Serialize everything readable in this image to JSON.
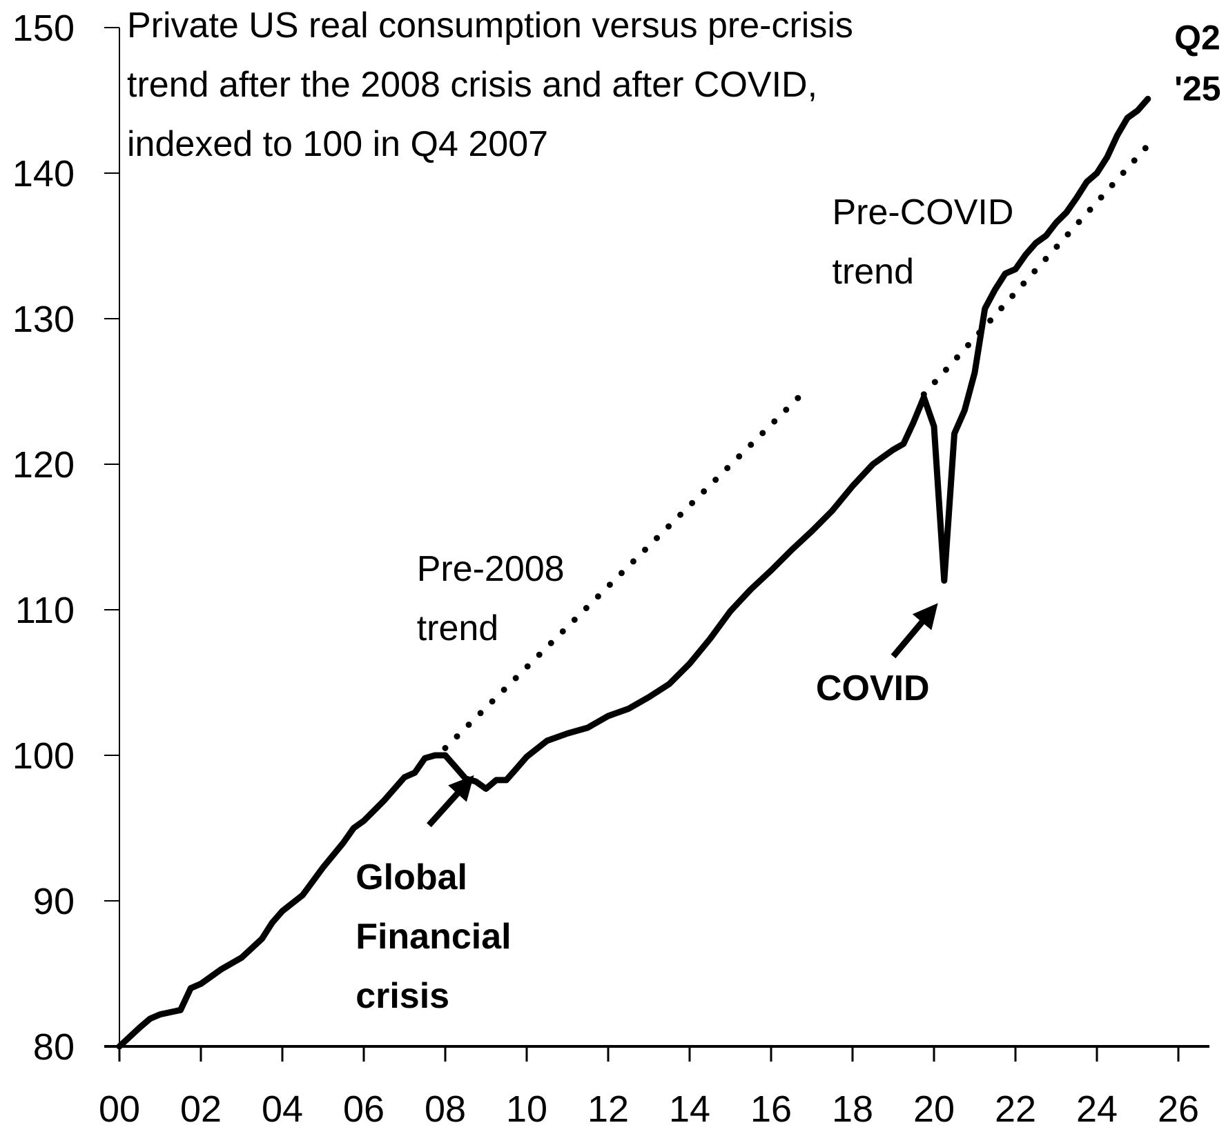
{
  "chart_data": {
    "type": "line",
    "title_lines": [
      "Private US real consumption versus pre-crisis",
      "trend after the 2008 crisis and after COVID,",
      "indexed to 100 in Q4 2007"
    ],
    "xlabel": "",
    "ylabel": "",
    "xlim": [
      2000,
      2026.5
    ],
    "ylim": [
      80,
      150
    ],
    "grid": false,
    "legend": "none",
    "x_ticks": [
      2000,
      2002,
      2004,
      2006,
      2008,
      2010,
      2012,
      2014,
      2016,
      2018,
      2020,
      2022,
      2024,
      2026
    ],
    "x_tick_labels": [
      "00",
      "02",
      "04",
      "06",
      "08",
      "10",
      "12",
      "14",
      "16",
      "18",
      "20",
      "22",
      "24",
      "26"
    ],
    "y_ticks": [
      80,
      90,
      100,
      110,
      120,
      130,
      140,
      150
    ],
    "y_tick_labels": [
      "80",
      "90",
      "100",
      "110",
      "120",
      "130",
      "140",
      "150"
    ],
    "series": [
      {
        "name": "Private US real consumption",
        "style": "solid",
        "color": "#000000",
        "x": [
          2000.0,
          2000.5,
          2000.75,
          2001.0,
          2001.5,
          2001.75,
          2002.0,
          2002.5,
          2003.0,
          2003.5,
          2003.75,
          2004.0,
          2004.5,
          2005.0,
          2005.5,
          2005.75,
          2006.0,
          2006.25,
          2006.5,
          2007.0,
          2007.25,
          2007.5,
          2007.75,
          2008.0,
          2008.25,
          2008.5,
          2008.75,
          2009.0,
          2009.25,
          2009.5,
          2009.75,
          2010.0,
          2010.5,
          2011.0,
          2011.5,
          2012.0,
          2012.5,
          2013.0,
          2013.5,
          2014.0,
          2014.5,
          2015.0,
          2015.5,
          2016.0,
          2016.5,
          2017.0,
          2017.5,
          2018.0,
          2018.5,
          2019.0,
          2019.25,
          2019.5,
          2019.75,
          2020.0,
          2020.25,
          2020.5,
          2020.75,
          2021.0,
          2021.25,
          2021.5,
          2021.75,
          2022.0,
          2022.25,
          2022.5,
          2022.75,
          2023.0,
          2023.25,
          2023.5,
          2023.75,
          2024.0,
          2024.25,
          2024.5,
          2024.75,
          2025.0,
          2025.25
        ],
        "y": [
          80.0,
          81.3,
          81.9,
          82.2,
          82.5,
          84.0,
          84.3,
          85.3,
          86.1,
          87.4,
          88.5,
          89.3,
          90.4,
          92.3,
          94.0,
          95.0,
          95.5,
          96.2,
          96.9,
          98.5,
          98.8,
          99.8,
          100.0,
          100.0,
          99.2,
          98.4,
          98.2,
          97.7,
          98.3,
          98.3,
          99.1,
          99.9,
          101.0,
          101.5,
          101.9,
          102.7,
          103.2,
          104.0,
          104.9,
          106.3,
          108.0,
          109.9,
          111.4,
          112.7,
          114.1,
          115.4,
          116.8,
          118.5,
          120.0,
          121.0,
          121.4,
          122.9,
          124.6,
          122.6,
          112.0,
          122.1,
          123.7,
          126.3,
          130.7,
          132.0,
          133.1,
          133.4,
          134.4,
          135.2,
          135.7,
          136.6,
          137.3,
          138.3,
          139.4,
          140.0,
          141.1,
          142.6,
          143.8,
          144.3,
          145.1
        ]
      },
      {
        "name": "Pre-2008 trend",
        "style": "dotted",
        "color": "#000000",
        "x": [
          2008.0,
          2016.75
        ],
        "y": [
          100.5,
          124.8
        ]
      },
      {
        "name": "Pre-COVID trend",
        "style": "dotted",
        "color": "#000000",
        "x": [
          2019.75,
          2025.25
        ],
        "y": [
          124.8,
          141.9
        ]
      }
    ],
    "annotations": [
      {
        "id": "pre2008",
        "lines": [
          "Pre-2008",
          "trend"
        ],
        "bold": false,
        "at": [
          2007.3,
          112
        ]
      },
      {
        "id": "precovid",
        "lines": [
          "Pre-COVID",
          "trend"
        ],
        "bold": false,
        "at": [
          2017.5,
          136.5
        ]
      },
      {
        "id": "gfc",
        "lines": [
          "Global",
          "Financial",
          "crisis"
        ],
        "bold": true,
        "at": [
          2005.8,
          90.8
        ],
        "arrow_from": [
          2007.6,
          95.2
        ],
        "arrow_to": [
          2008.5,
          98.0
        ]
      },
      {
        "id": "covid",
        "lines": [
          "COVID"
        ],
        "bold": true,
        "at": [
          2017.1,
          103.8
        ],
        "arrow_from": [
          2019.0,
          106.8
        ],
        "arrow_to": [
          2019.9,
          109.8
        ]
      },
      {
        "id": "endlabel",
        "lines": [
          "Q2",
          "'25"
        ],
        "bold": true,
        "at": [
          2025.9,
          148.5
        ]
      }
    ]
  }
}
